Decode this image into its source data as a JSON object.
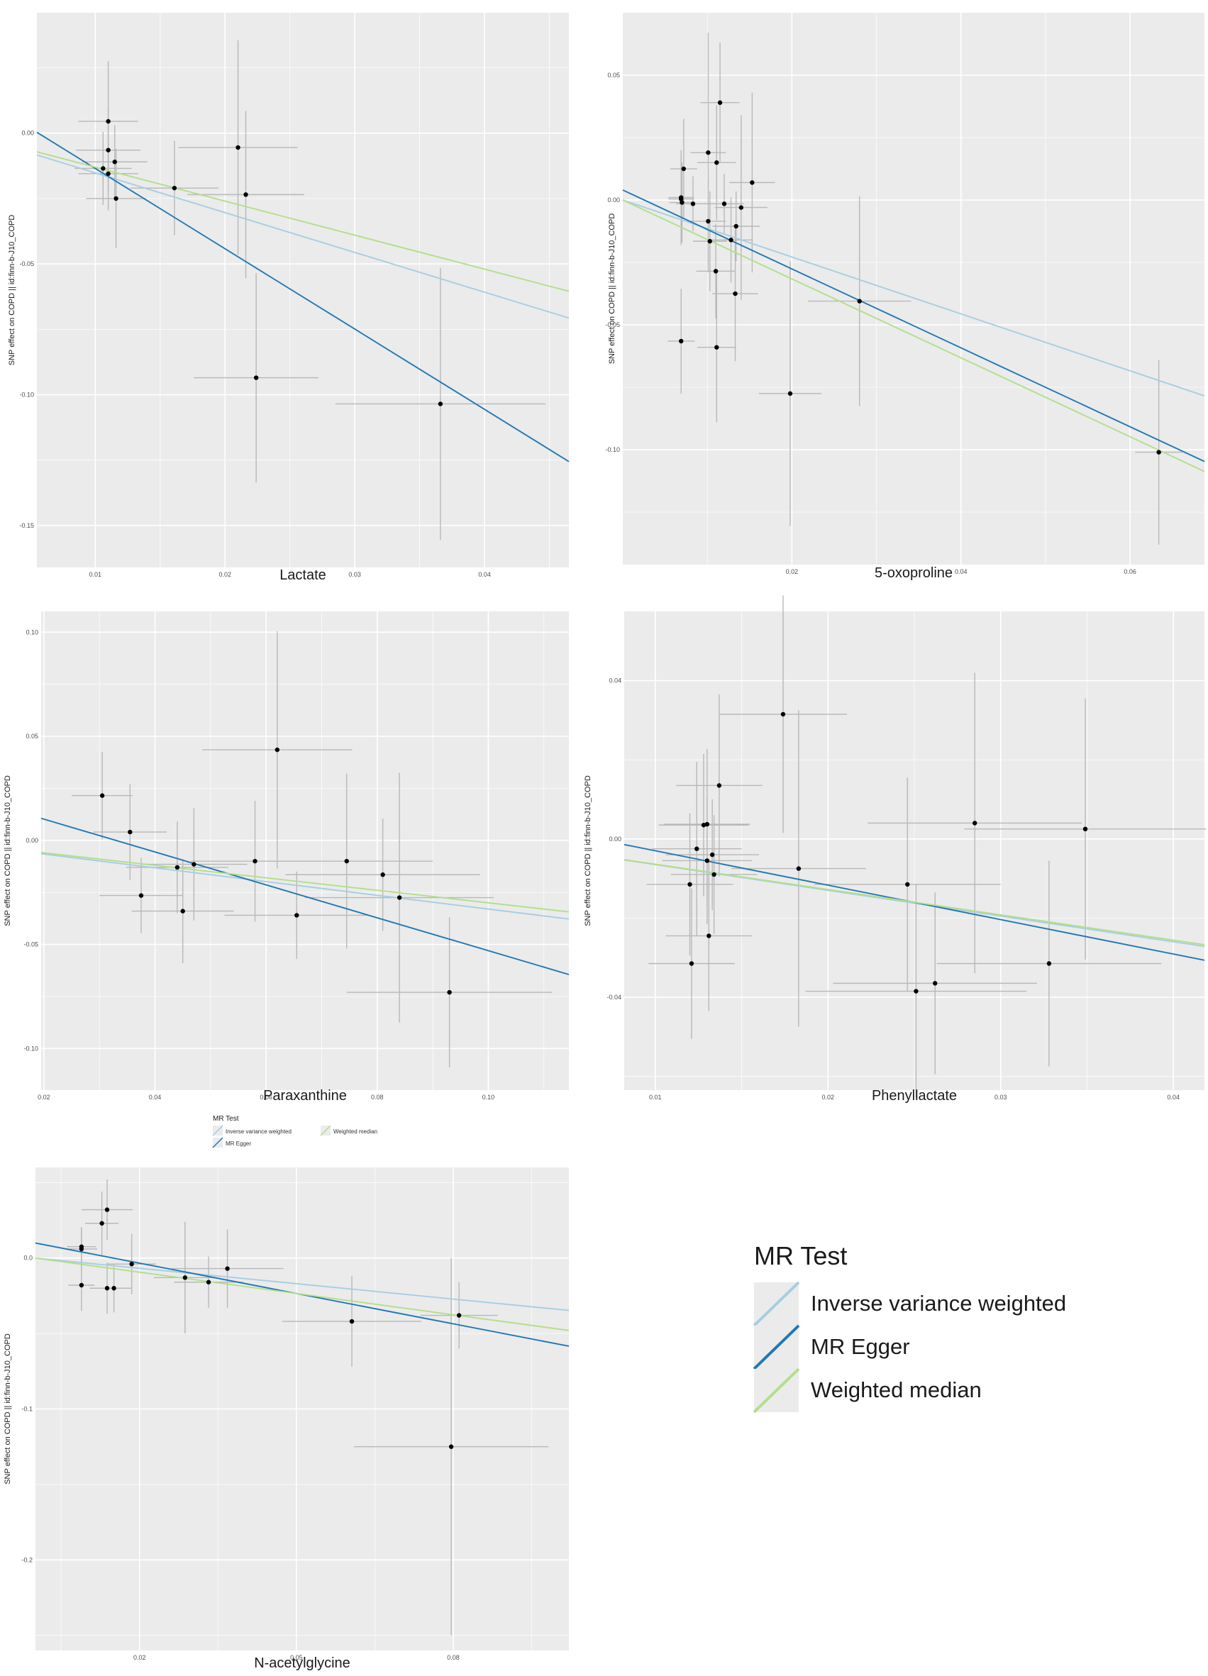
{
  "legend": {
    "title": "MR Test",
    "items": [
      {
        "label": "Inverse variance weighted",
        "color": "#a6cee3"
      },
      {
        "label": "MR Egger",
        "color": "#1f78b4"
      },
      {
        "label": "Weighted median",
        "color": "#b2df8a"
      }
    ]
  },
  "chart_data": [
    {
      "type": "scatter",
      "xlabel": "Lactate",
      "ylabel": "SNP effect on COPD || id:finn-b-J10_COPD",
      "xlim": [
        0.0055,
        0.0465
      ],
      "ylim": [
        -0.166,
        0.046
      ],
      "xticks": [
        {
          "v": 0.01,
          "label": "0.01"
        },
        {
          "v": 0.02,
          "label": "0.02"
        },
        {
          "v": 0.03,
          "label": "0.03"
        },
        {
          "v": 0.04,
          "label": "0.04"
        }
      ],
      "yticks": [
        {
          "v": 0.0,
          "label": "0.00"
        },
        {
          "v": -0.05,
          "label": "-0.05"
        },
        {
          "v": -0.1,
          "label": "-0.10"
        },
        {
          "v": -0.15,
          "label": "-0.15"
        }
      ],
      "points": [
        {
          "x": 0.011,
          "y": 0.0045,
          "xse": 0.0023,
          "yse": 0.023
        },
        {
          "x": 0.011,
          "y": -0.0065,
          "xse": 0.0025,
          "yse": 0.016
        },
        {
          "x": 0.0115,
          "y": -0.011,
          "xse": 0.0025,
          "yse": 0.014
        },
        {
          "x": 0.0106,
          "y": -0.0135,
          "xse": 0.0022,
          "yse": 0.014
        },
        {
          "x": 0.011,
          "y": -0.0155,
          "xse": 0.0023,
          "yse": 0.014
        },
        {
          "x": 0.0116,
          "y": -0.025,
          "xse": 0.0023,
          "yse": 0.019
        },
        {
          "x": 0.0161,
          "y": -0.021,
          "xse": 0.0034,
          "yse": 0.018
        },
        {
          "x": 0.021,
          "y": -0.0055,
          "xse": 0.0046,
          "yse": 0.041
        },
        {
          "x": 0.0216,
          "y": -0.0235,
          "xse": 0.0045,
          "yse": 0.032
        },
        {
          "x": 0.0224,
          "y": -0.0935,
          "xse": 0.0048,
          "yse": 0.04
        },
        {
          "x": 0.0366,
          "y": -0.1035,
          "xse": 0.0081,
          "yse": 0.052
        }
      ],
      "lines": [
        {
          "method": "Inverse variance weighted",
          "intercept": 0.0,
          "slope": -1.52
        },
        {
          "method": "MR Egger",
          "intercept": 0.0172,
          "slope": -3.07
        },
        {
          "method": "Weighted median",
          "intercept": 0.0,
          "slope": -1.3
        }
      ]
    },
    {
      "type": "scatter",
      "xlabel": "5-oxoproline",
      "ylabel": "SNP effect on COPD || id:finn-b-J10_COPD",
      "xlim": [
        0.0,
        0.0688
      ],
      "ylim": [
        -0.146,
        0.075
      ],
      "xticks": [
        {
          "v": 0.02,
          "label": "0.02"
        },
        {
          "v": 0.04,
          "label": "0.04"
        },
        {
          "v": 0.06,
          "label": "0.06"
        }
      ],
      "yticks": [
        {
          "v": 0.05,
          "label": "0.05"
        },
        {
          "v": 0.0,
          "label": "0.00"
        },
        {
          "v": -0.05,
          "label": "-0.05"
        },
        {
          "v": -0.1,
          "label": "-0.10"
        }
      ],
      "points": [
        {
          "x": 0.0069,
          "y": 0.001,
          "xse": 0.0015,
          "yse": 0.019
        },
        {
          "x": 0.0069,
          "y": 0.0004,
          "xse": 0.0015,
          "yse": 0.017
        },
        {
          "x": 0.007,
          "y": -0.001,
          "xse": 0.0015,
          "yse": 0.016
        },
        {
          "x": 0.0072,
          "y": 0.0125,
          "xse": 0.0016,
          "yse": 0.02
        },
        {
          "x": 0.0083,
          "y": -0.0015,
          "xse": 0.002,
          "yse": 0.011
        },
        {
          "x": 0.0101,
          "y": 0.019,
          "xse": 0.0021,
          "yse": 0.048
        },
        {
          "x": 0.0111,
          "y": 0.015,
          "xse": 0.0023,
          "yse": 0.023
        },
        {
          "x": 0.0115,
          "y": 0.039,
          "xse": 0.0023,
          "yse": 0.024
        },
        {
          "x": 0.0101,
          "y": -0.0085,
          "xse": 0.0021,
          "yse": 0.017
        },
        {
          "x": 0.0103,
          "y": -0.0165,
          "xse": 0.002,
          "yse": 0.02
        },
        {
          "x": 0.011,
          "y": -0.0285,
          "xse": 0.0023,
          "yse": 0.019
        },
        {
          "x": 0.012,
          "y": -0.0015,
          "xse": 0.0023,
          "yse": 0.012
        },
        {
          "x": 0.0128,
          "y": -0.016,
          "xse": 0.0026,
          "yse": 0.017
        },
        {
          "x": 0.0134,
          "y": -0.0105,
          "xse": 0.0028,
          "yse": 0.014
        },
        {
          "x": 0.014,
          "y": -0.003,
          "xse": 0.0031,
          "yse": 0.037
        },
        {
          "x": 0.0133,
          "y": -0.0375,
          "xse": 0.0027,
          "yse": 0.027
        },
        {
          "x": 0.0111,
          "y": -0.059,
          "xse": 0.0023,
          "yse": 0.03
        },
        {
          "x": 0.0069,
          "y": -0.0565,
          "xse": 0.0016,
          "yse": 0.021
        },
        {
          "x": 0.0153,
          "y": 0.007,
          "xse": 0.0027,
          "yse": 0.036
        },
        {
          "x": 0.0198,
          "y": -0.0775,
          "xse": 0.0037,
          "yse": 0.053
        },
        {
          "x": 0.028,
          "y": -0.0405,
          "xse": 0.0061,
          "yse": 0.042
        },
        {
          "x": 0.0634,
          "y": -0.101,
          "xse": 0.0028,
          "yse": 0.037
        }
      ],
      "lines": [
        {
          "method": "Inverse variance weighted",
          "intercept": 0.0,
          "slope": -1.14
        },
        {
          "method": "MR Egger",
          "intercept": 0.004,
          "slope": -1.58
        },
        {
          "method": "Weighted median",
          "intercept": 0.0,
          "slope": -1.58
        }
      ]
    },
    {
      "type": "scatter",
      "xlabel": "Paraxanthine",
      "ylabel": "SNP effect on COPD || id:finn-b-J10_COPD",
      "xlim": [
        0.0195,
        0.1145
      ],
      "ylim": [
        -0.12,
        0.11
      ],
      "xticks": [
        {
          "v": 0.02,
          "label": "0.02"
        },
        {
          "v": 0.04,
          "label": "0.04"
        },
        {
          "v": 0.06,
          "label": "0.06"
        },
        {
          "v": 0.08,
          "label": "0.08"
        },
        {
          "v": 0.1,
          "label": "0.10"
        }
      ],
      "yticks": [
        {
          "v": 0.1,
          "label": "0.10"
        },
        {
          "v": 0.05,
          "label": "0.05"
        },
        {
          "v": 0.0,
          "label": "0.00"
        },
        {
          "v": -0.05,
          "label": "-0.05"
        },
        {
          "v": -0.1,
          "label": "-0.10"
        }
      ],
      "points": [
        {
          "x": 0.0305,
          "y": 0.0215,
          "xse": 0.0055,
          "yse": 0.021
        },
        {
          "x": 0.0355,
          "y": 0.004,
          "xse": 0.0066,
          "yse": 0.023
        },
        {
          "x": 0.0375,
          "y": -0.0265,
          "xse": 0.0075,
          "yse": 0.018
        },
        {
          "x": 0.044,
          "y": -0.013,
          "xse": 0.0092,
          "yse": 0.022
        },
        {
          "x": 0.045,
          "y": -0.034,
          "xse": 0.0092,
          "yse": 0.025
        },
        {
          "x": 0.047,
          "y": -0.0115,
          "xse": 0.0096,
          "yse": 0.027
        },
        {
          "x": 0.058,
          "y": -0.01,
          "xse": 0.0115,
          "yse": 0.029
        },
        {
          "x": 0.062,
          "y": 0.0435,
          "xse": 0.0135,
          "yse": 0.057
        },
        {
          "x": 0.0655,
          "y": -0.036,
          "xse": 0.013,
          "yse": 0.021
        },
        {
          "x": 0.0745,
          "y": -0.01,
          "xse": 0.0155,
          "yse": 0.042
        },
        {
          "x": 0.081,
          "y": -0.0165,
          "xse": 0.0175,
          "yse": 0.027
        },
        {
          "x": 0.084,
          "y": -0.0275,
          "xse": 0.017,
          "yse": 0.06
        },
        {
          "x": 0.093,
          "y": -0.073,
          "xse": 0.0185,
          "yse": 0.036
        }
      ],
      "lines": [
        {
          "method": "Inverse variance weighted",
          "intercept": 0.0,
          "slope": -0.33
        },
        {
          "method": "MR Egger",
          "intercept": 0.026,
          "slope": -0.79
        },
        {
          "method": "Weighted median",
          "intercept": 0.0,
          "slope": -0.3
        }
      ]
    },
    {
      "type": "scatter",
      "xlabel": "Phenyllactate",
      "ylabel": "SNP effect on COPD || id:finn-b-J10_COPD",
      "xlim": [
        0.0082,
        0.0418
      ],
      "ylim": [
        -0.0635,
        0.0575
      ],
      "xticks": [
        {
          "v": 0.01,
          "label": "0.01"
        },
        {
          "v": 0.02,
          "label": "0.02"
        },
        {
          "v": 0.03,
          "label": "0.03"
        },
        {
          "v": 0.04,
          "label": "0.04"
        }
      ],
      "yticks": [
        {
          "v": 0.04,
          "label": "0.04"
        },
        {
          "v": 0.0,
          "label": "0.00"
        },
        {
          "v": -0.04,
          "label": "-0.04"
        }
      ],
      "points": [
        {
          "x": 0.012,
          "y": -0.0115,
          "xse": 0.0025,
          "yse": 0.018
        },
        {
          "x": 0.0121,
          "y": -0.0315,
          "xse": 0.0025,
          "yse": 0.019
        },
        {
          "x": 0.0124,
          "y": -0.0025,
          "xse": 0.0026,
          "yse": 0.022
        },
        {
          "x": 0.0128,
          "y": 0.0035,
          "xse": 0.0026,
          "yse": 0.018
        },
        {
          "x": 0.013,
          "y": 0.0037,
          "xse": 0.0025,
          "yse": 0.019
        },
        {
          "x": 0.013,
          "y": -0.0055,
          "xse": 0.0026,
          "yse": 0.016
        },
        {
          "x": 0.0131,
          "y": -0.0245,
          "xse": 0.0025,
          "yse": 0.019
        },
        {
          "x": 0.0133,
          "y": -0.004,
          "xse": 0.0027,
          "yse": 0.014
        },
        {
          "x": 0.0134,
          "y": -0.009,
          "xse": 0.0025,
          "yse": 0.015
        },
        {
          "x": 0.0137,
          "y": 0.0135,
          "xse": 0.0025,
          "yse": 0.023
        },
        {
          "x": 0.0174,
          "y": 0.0315,
          "xse": 0.0037,
          "yse": 0.03
        },
        {
          "x": 0.0183,
          "y": -0.0075,
          "xse": 0.0039,
          "yse": 0.04
        },
        {
          "x": 0.0246,
          "y": -0.0115,
          "xse": 0.0054,
          "yse": 0.027
        },
        {
          "x": 0.0251,
          "y": -0.0385,
          "xse": 0.0064,
          "yse": 0.027
        },
        {
          "x": 0.0262,
          "y": -0.0365,
          "xse": 0.0059,
          "yse": 0.023
        },
        {
          "x": 0.0285,
          "y": 0.004,
          "xse": 0.0062,
          "yse": 0.038
        },
        {
          "x": 0.0328,
          "y": -0.0315,
          "xse": 0.0065,
          "yse": 0.026
        },
        {
          "x": 0.0349,
          "y": 0.0025,
          "xse": 0.007,
          "yse": 0.033
        }
      ],
      "lines": [
        {
          "method": "Inverse variance weighted",
          "intercept": 0.0,
          "slope": -0.65
        },
        {
          "method": "MR Egger",
          "intercept": 0.0057,
          "slope": -0.87
        },
        {
          "method": "Weighted median",
          "intercept": 0.0,
          "slope": -0.64
        }
      ]
    },
    {
      "type": "scatter",
      "xlabel": "N-acetylglycine",
      "ylabel": "SNP effect on COPD || id:finn-b-J10_COPD",
      "xlim": [
        0.0001,
        0.1021
      ],
      "ylim": [
        -0.26,
        0.06
      ],
      "xticks": [
        {
          "v": 0.02,
          "label": "0.02"
        },
        {
          "v": 0.05,
          "label": "0.05"
        },
        {
          "v": 0.08,
          "label": "0.08"
        }
      ],
      "yticks": [
        {
          "v": 0.0,
          "label": "0.0"
        },
        {
          "v": -0.1,
          "label": "-0.1"
        },
        {
          "v": -0.2,
          "label": "-0.2"
        }
      ],
      "points": [
        {
          "x": 0.0089,
          "y": 0.0075,
          "xse": 0.0028,
          "yse": 0.013
        },
        {
          "x": 0.0089,
          "y": 0.006,
          "xse": 0.003,
          "yse": 0.014
        },
        {
          "x": 0.0089,
          "y": -0.018,
          "xse": 0.0025,
          "yse": 0.017
        },
        {
          "x": 0.0128,
          "y": 0.023,
          "xse": 0.0032,
          "yse": 0.021
        },
        {
          "x": 0.0138,
          "y": 0.032,
          "xse": 0.0049,
          "yse": 0.02
        },
        {
          "x": 0.0138,
          "y": -0.02,
          "xse": 0.0033,
          "yse": 0.017
        },
        {
          "x": 0.0151,
          "y": -0.02,
          "xse": 0.0033,
          "yse": 0.016
        },
        {
          "x": 0.0185,
          "y": -0.004,
          "xse": 0.0046,
          "yse": 0.02
        },
        {
          "x": 0.0287,
          "y": -0.013,
          "xse": 0.006,
          "yse": 0.037
        },
        {
          "x": 0.0332,
          "y": -0.016,
          "xse": 0.0066,
          "yse": 0.017
        },
        {
          "x": 0.0368,
          "y": -0.007,
          "xse": 0.0107,
          "yse": 0.026
        },
        {
          "x": 0.0606,
          "y": -0.042,
          "xse": 0.0133,
          "yse": 0.03
        },
        {
          "x": 0.0811,
          "y": -0.038,
          "xse": 0.0074,
          "yse": 0.022
        },
        {
          "x": 0.0796,
          "y": -0.125,
          "xse": 0.0186,
          "yse": 0.125
        }
      ],
      "lines": [
        {
          "method": "Inverse variance weighted",
          "intercept": 0.0,
          "slope": -0.34
        },
        {
          "method": "MR Egger",
          "intercept": 0.01,
          "slope": -0.67
        },
        {
          "method": "Weighted median",
          "intercept": 0.0,
          "slope": -0.47
        }
      ]
    }
  ]
}
